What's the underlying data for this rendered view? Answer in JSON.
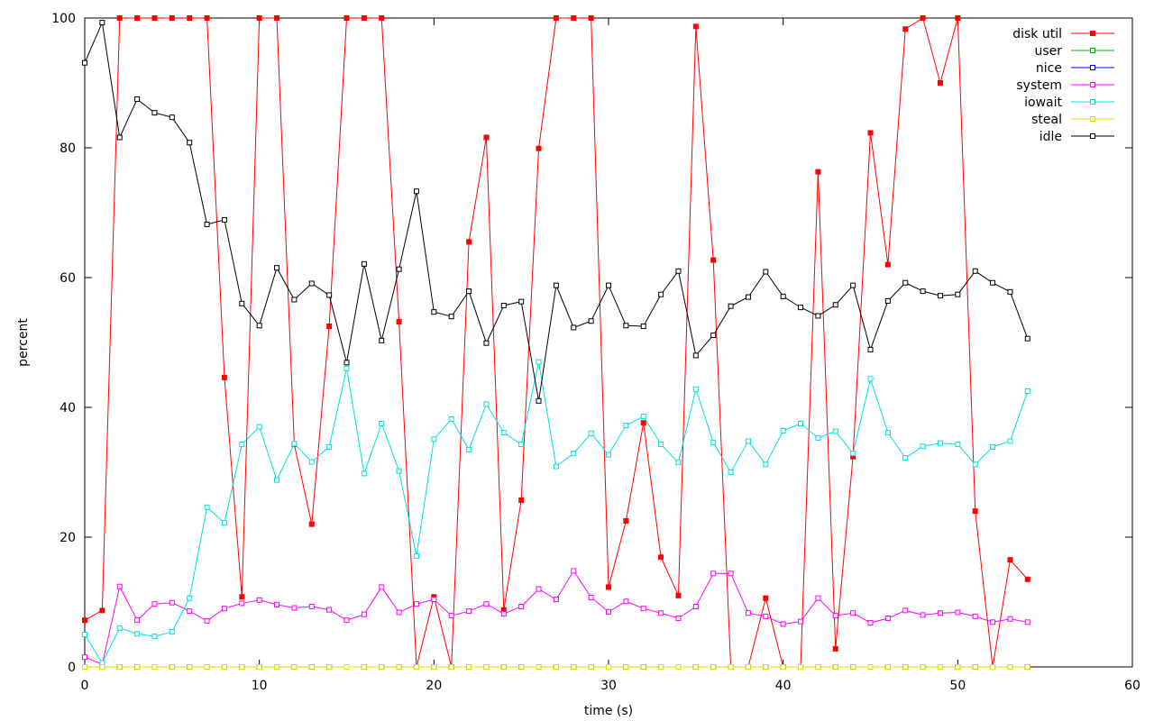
{
  "chart_data": {
    "type": "line",
    "title": "",
    "xlabel": "time (s)",
    "ylabel": "percent",
    "xlim": [
      0,
      60
    ],
    "ylim": [
      0,
      100
    ],
    "xticks": [
      0,
      10,
      20,
      30,
      40,
      50,
      60
    ],
    "yticks": [
      0,
      20,
      40,
      60,
      80,
      100
    ],
    "grid": false,
    "legend_position": "top-right",
    "x": [
      0,
      1,
      2,
      3,
      4,
      5,
      6,
      7,
      8,
      9,
      10,
      11,
      12,
      13,
      14,
      15,
      16,
      17,
      18,
      19,
      20,
      21,
      22,
      23,
      24,
      25,
      26,
      27,
      28,
      29,
      30,
      31,
      32,
      33,
      34,
      35,
      36,
      37,
      38,
      39,
      40,
      41,
      42,
      43,
      44,
      45,
      46,
      47,
      48,
      49,
      50,
      51,
      52,
      53,
      54
    ],
    "series": [
      {
        "name": "disk util",
        "color": "#ff0000",
        "marker": "filled-square",
        "values": [
          7.2,
          8.7,
          100,
          100,
          100,
          100,
          100,
          100,
          44.6,
          10.8,
          100,
          100,
          34.3,
          22,
          52.5,
          100,
          100,
          100,
          53.2,
          0,
          10.8,
          0,
          65.5,
          81.6,
          8.8,
          25.7,
          79.9,
          100,
          100,
          100,
          12.3,
          22.5,
          37.6,
          16.9,
          11,
          98.7,
          62.7,
          0,
          0,
          10.6,
          0,
          0,
          76.3,
          2.8,
          32.4,
          82.3,
          62,
          98.3,
          100,
          90,
          100,
          24,
          0,
          16.5,
          13.5
        ]
      },
      {
        "name": "user",
        "color": "#00c000",
        "marker": "open-square",
        "values": [
          0,
          0,
          0,
          0,
          0,
          0,
          0,
          0,
          0,
          0,
          0,
          0,
          0,
          0,
          0,
          0,
          0,
          0,
          0,
          0,
          0,
          0,
          0,
          0,
          0,
          0,
          0,
          0,
          0,
          0,
          0,
          0,
          0,
          0,
          0,
          0,
          0,
          0,
          0,
          0,
          0,
          0,
          0,
          0,
          0,
          0,
          0,
          0,
          0,
          0,
          0,
          0,
          0,
          0,
          0
        ]
      },
      {
        "name": "nice",
        "color": "#0000ff",
        "marker": "open-square",
        "values": [
          0,
          0,
          0,
          0,
          0,
          0,
          0,
          0,
          0,
          0,
          0,
          0,
          0,
          0,
          0,
          0,
          0,
          0,
          0,
          0,
          0,
          0,
          0,
          0,
          0,
          0,
          0,
          0,
          0,
          0,
          0,
          0,
          0,
          0,
          0,
          0,
          0,
          0,
          0,
          0,
          0,
          0,
          0,
          0,
          0,
          0,
          0,
          0,
          0,
          0,
          0,
          0,
          0,
          0,
          0
        ]
      },
      {
        "name": "system",
        "color": "#ff00ff",
        "marker": "open-square",
        "values": [
          1.5,
          0.4,
          12.4,
          7.2,
          9.7,
          9.9,
          8.6,
          7.1,
          9,
          9.8,
          10.3,
          9.6,
          9.1,
          9.3,
          8.8,
          7.2,
          8.1,
          12.3,
          8.4,
          9.7,
          10.4,
          7.9,
          8.6,
          9.7,
          8.2,
          9.3,
          12,
          10.4,
          14.8,
          10.7,
          8.5,
          10.1,
          9,
          8.3,
          7.5,
          9.3,
          14.4,
          14.4,
          8.3,
          7.8,
          6.6,
          7,
          10.6,
          7.9,
          8.3,
          6.8,
          7.5,
          8.7,
          8,
          8.3,
          8.4,
          7.8,
          6.9,
          7.4,
          6.9
        ]
      },
      {
        "name": "iowait",
        "color": "#00e0e0",
        "marker": "open-square",
        "values": [
          5,
          0.6,
          6,
          5.1,
          4.7,
          5.4,
          10.6,
          24.6,
          22.2,
          34.3,
          37,
          28.8,
          34.4,
          31.6,
          33.9,
          46,
          29.8,
          37.5,
          30.2,
          17.1,
          35.1,
          38.2,
          33.5,
          40.5,
          36.1,
          34.3,
          47,
          30.9,
          32.9,
          36,
          32.7,
          37.2,
          38.6,
          34.3,
          31.5,
          42.8,
          34.6,
          30,
          34.8,
          31.2,
          36.4,
          37.5,
          35.3,
          36.3,
          32.9,
          44.4,
          36.1,
          32.2,
          34,
          34.5,
          34.3,
          31.2,
          33.9,
          34.8,
          42.5
        ]
      },
      {
        "name": "steal",
        "color": "#e0e000",
        "marker": "open-square",
        "values": [
          0,
          0,
          0,
          0,
          0,
          0,
          0,
          0,
          0,
          0,
          0,
          0,
          0,
          0,
          0,
          0,
          0,
          0,
          0,
          0,
          0,
          0,
          0,
          0,
          0,
          0,
          0,
          0,
          0,
          0,
          0,
          0,
          0,
          0,
          0,
          0,
          0,
          0,
          0,
          0,
          0,
          0,
          0,
          0,
          0,
          0,
          0,
          0,
          0,
          0,
          0,
          0,
          0,
          0,
          0
        ]
      },
      {
        "name": "idle",
        "color": "#000000",
        "marker": "open-square",
        "values": [
          93.1,
          99.3,
          81.6,
          87.5,
          85.4,
          84.7,
          80.8,
          68.2,
          68.9,
          56,
          52.6,
          61.5,
          56.6,
          59.1,
          57.3,
          46.9,
          62.1,
          50.3,
          61.3,
          73.3,
          54.7,
          54,
          57.9,
          49.9,
          55.7,
          56.3,
          41,
          58.8,
          52.3,
          53.3,
          58.8,
          52.6,
          52.5,
          57.4,
          61,
          48,
          51.1,
          55.6,
          57,
          60.9,
          57.1,
          55.4,
          54.1,
          55.8,
          58.8,
          48.9,
          56.4,
          59.2,
          57.9,
          57.2,
          57.4,
          61,
          59.2,
          57.8,
          50.6
        ]
      }
    ]
  }
}
